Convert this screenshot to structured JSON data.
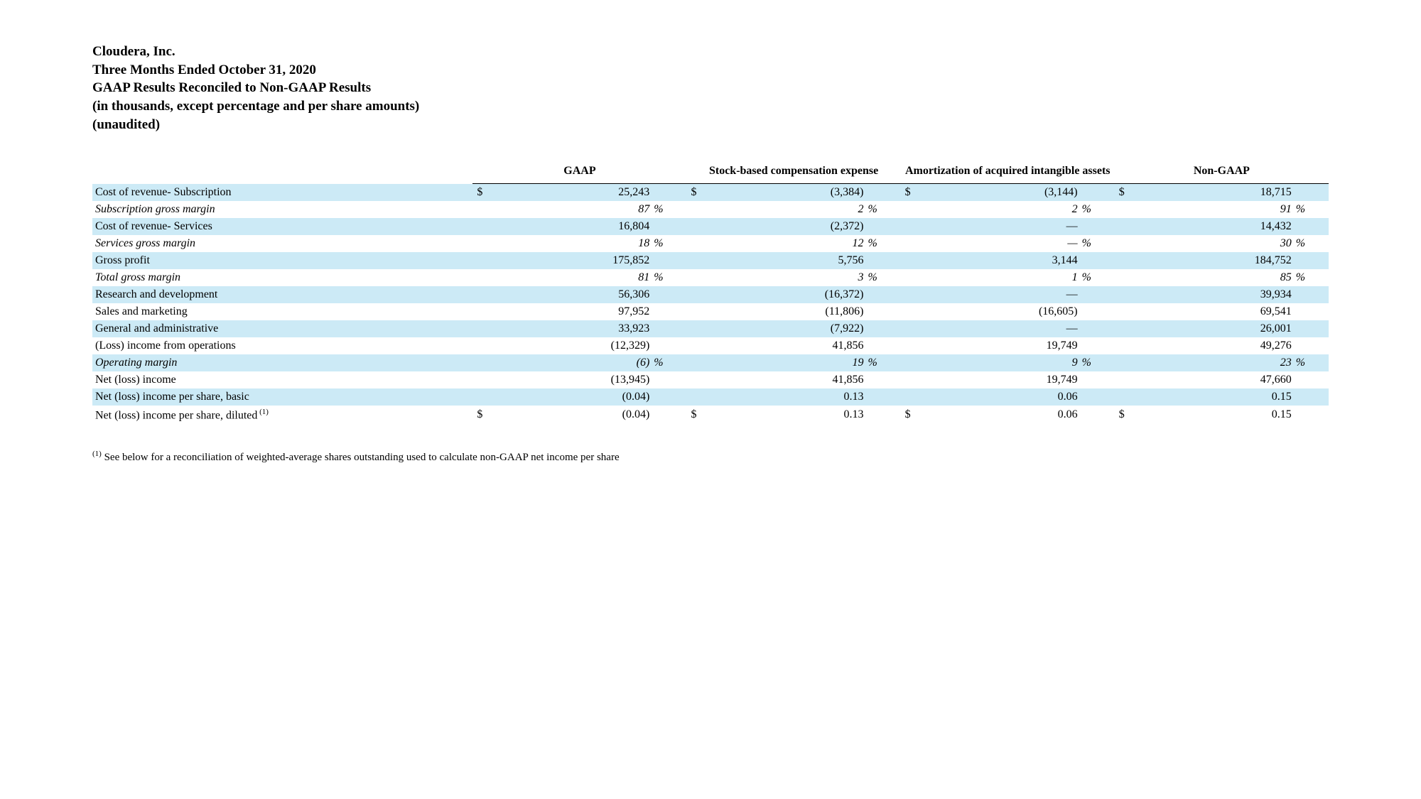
{
  "header": {
    "company": "Cloudera, Inc.",
    "period": "Three Months Ended October 31, 2020",
    "title": "GAAP Results Reconciled to Non-GAAP Results",
    "units": "(in thousands, except percentage and per share amounts)",
    "audited": "(unaudited)"
  },
  "columns": {
    "c1": "GAAP",
    "c2": "Stock-based compensation expense",
    "c3": "Amortization of acquired intangible assets",
    "c4": "Non-GAAP"
  },
  "rows": [
    {
      "label": "Cost of revenue- Subscription",
      "shade": true,
      "italic": false,
      "show_cur": true,
      "gaap": "25,243",
      "sbc": "(3,384)",
      "amort": "(3,144)",
      "ng": "18,715",
      "gaap_pct": "",
      "sbc_pct": "",
      "amort_pct": "",
      "ng_pct": ""
    },
    {
      "label": "Subscription gross margin",
      "shade": false,
      "italic": true,
      "show_cur": false,
      "gaap": "87",
      "sbc": "2",
      "amort": "2",
      "ng": "91",
      "gaap_pct": "%",
      "sbc_pct": "%",
      "amort_pct": "%",
      "ng_pct": "%"
    },
    {
      "label": "Cost of revenue- Services",
      "shade": true,
      "italic": false,
      "show_cur": false,
      "gaap": "16,804",
      "sbc": "(2,372)",
      "amort": "—",
      "ng": "14,432",
      "gaap_pct": "",
      "sbc_pct": "",
      "amort_pct": "",
      "ng_pct": ""
    },
    {
      "label": "Services gross margin",
      "shade": false,
      "italic": true,
      "show_cur": false,
      "gaap": "18",
      "sbc": "12",
      "amort": "—",
      "ng": "30",
      "gaap_pct": "%",
      "sbc_pct": "%",
      "amort_pct": "%",
      "ng_pct": "%"
    },
    {
      "label": "Gross profit",
      "shade": true,
      "italic": false,
      "show_cur": false,
      "gaap": "175,852",
      "sbc": "5,756",
      "amort": "3,144",
      "ng": "184,752",
      "gaap_pct": "",
      "sbc_pct": "",
      "amort_pct": "",
      "ng_pct": ""
    },
    {
      "label": "Total gross margin",
      "shade": false,
      "italic": true,
      "show_cur": false,
      "gaap": "81",
      "sbc": "3",
      "amort": "1",
      "ng": "85",
      "gaap_pct": "%",
      "sbc_pct": "%",
      "amort_pct": "%",
      "ng_pct": "%"
    },
    {
      "label": "Research and development",
      "shade": true,
      "italic": false,
      "show_cur": false,
      "gaap": "56,306",
      "sbc": "(16,372)",
      "amort": "—",
      "ng": "39,934",
      "gaap_pct": "",
      "sbc_pct": "",
      "amort_pct": "",
      "ng_pct": ""
    },
    {
      "label": "Sales and marketing",
      "shade": false,
      "italic": false,
      "show_cur": false,
      "gaap": "97,952",
      "sbc": "(11,806)",
      "amort": "(16,605)",
      "ng": "69,541",
      "gaap_pct": "",
      "sbc_pct": "",
      "amort_pct": "",
      "ng_pct": ""
    },
    {
      "label": "General and administrative",
      "shade": true,
      "italic": false,
      "show_cur": false,
      "gaap": "33,923",
      "sbc": "(7,922)",
      "amort": "—",
      "ng": "26,001",
      "gaap_pct": "",
      "sbc_pct": "",
      "amort_pct": "",
      "ng_pct": ""
    },
    {
      "label": "(Loss) income from operations",
      "shade": false,
      "italic": false,
      "show_cur": false,
      "gaap": "(12,329)",
      "sbc": "41,856",
      "amort": "19,749",
      "ng": "49,276",
      "gaap_pct": "",
      "sbc_pct": "",
      "amort_pct": "",
      "ng_pct": ""
    },
    {
      "label": "Operating margin",
      "shade": true,
      "italic": true,
      "show_cur": false,
      "gaap": "(6)",
      "sbc": "19",
      "amort": "9",
      "ng": "23",
      "gaap_pct": "%",
      "sbc_pct": "%",
      "amort_pct": "%",
      "ng_pct": "%"
    },
    {
      "label": "Net (loss) income",
      "shade": false,
      "italic": false,
      "show_cur": false,
      "gaap": "(13,945)",
      "sbc": "41,856",
      "amort": "19,749",
      "ng": "47,660",
      "gaap_pct": "",
      "sbc_pct": "",
      "amort_pct": "",
      "ng_pct": ""
    },
    {
      "label": "Net (loss) income per share, basic",
      "shade": true,
      "italic": false,
      "show_cur": false,
      "gaap": "(0.04)",
      "sbc": "0.13",
      "amort": "0.06",
      "ng": "0.15",
      "gaap_pct": "",
      "sbc_pct": "",
      "amort_pct": "",
      "ng_pct": ""
    },
    {
      "label": "Net (loss) income per share, diluted",
      "shade": false,
      "italic": false,
      "show_cur": true,
      "sup": "(1)",
      "gaap": "(0.04)",
      "sbc": "0.13",
      "amort": "0.06",
      "ng": "0.15",
      "gaap_pct": "",
      "sbc_pct": "",
      "amort_pct": "",
      "ng_pct": ""
    }
  ],
  "footnote": {
    "marker": "(1)",
    "text": " See below for a reconciliation of weighted-average shares outstanding used to calculate non-GAAP net income per share"
  },
  "symbols": {
    "currency": "$"
  }
}
